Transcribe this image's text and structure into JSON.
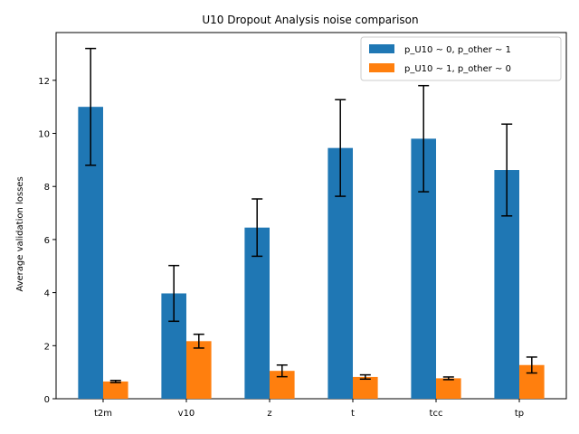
{
  "chart_data": {
    "type": "bar",
    "title": "U10 Dropout Analysis noise comparison",
    "xlabel": "",
    "ylabel": "Average validation losses",
    "categories": [
      "t2m",
      "v10",
      "z",
      "t",
      "tcc",
      "tp"
    ],
    "ylim": [
      0,
      13.8
    ],
    "yticks": [
      0,
      2,
      4,
      6,
      8,
      10,
      12
    ],
    "grid": false,
    "legend_position": "top-right",
    "series": [
      {
        "name": "p_U10 ~ 0, p_other ~ 1",
        "color": "#1f77b4",
        "values": [
          11.0,
          3.97,
          6.45,
          9.45,
          9.8,
          8.62
        ],
        "errors": [
          2.2,
          1.05,
          1.08,
          1.82,
          2.0,
          1.73
        ]
      },
      {
        "name": "p_U10 ~ 1, p_other ~ 0",
        "color": "#ff7f0e",
        "values": [
          0.65,
          2.17,
          1.05,
          0.82,
          0.77,
          1.27
        ],
        "errors": [
          0.04,
          0.26,
          0.22,
          0.08,
          0.05,
          0.3
        ]
      }
    ]
  }
}
